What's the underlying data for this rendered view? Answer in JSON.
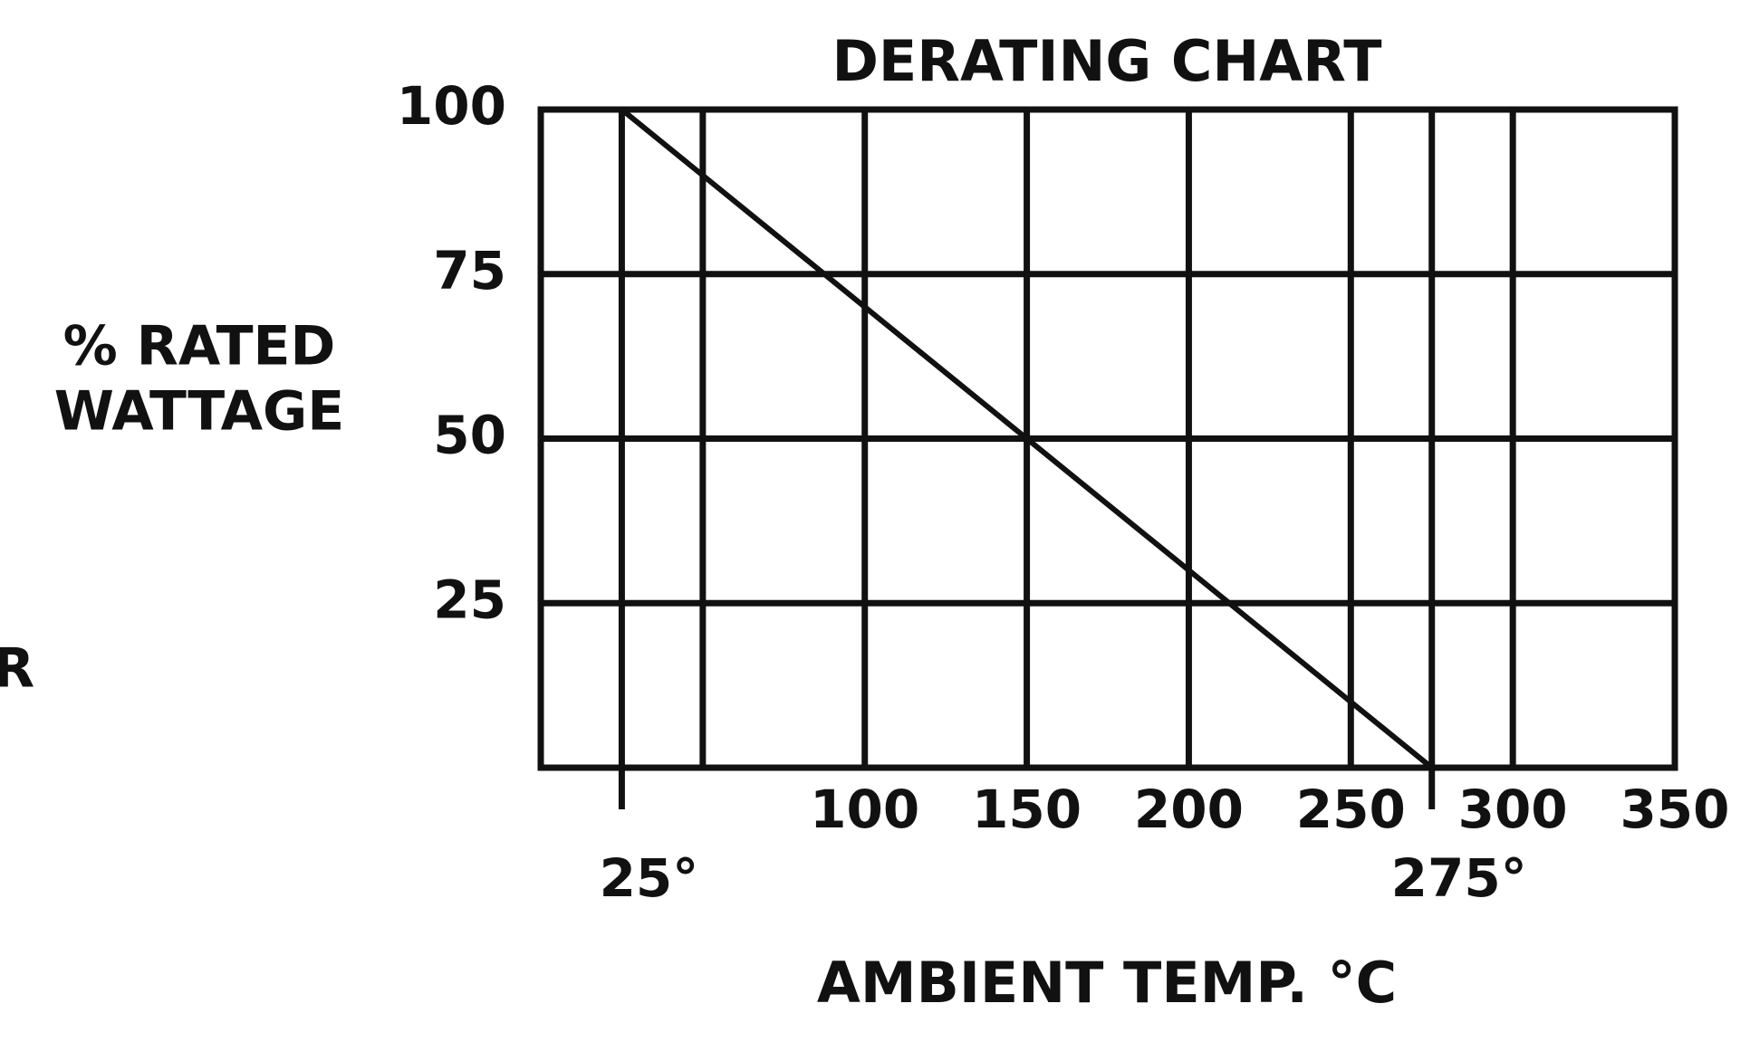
{
  "chart_data": {
    "type": "line",
    "title": "DERATING CHART",
    "xlabel": "AMBIENT TEMP. °C",
    "ylabel": [
      "% RATED",
      "WATTAGE"
    ],
    "annotations": [
      "R"
    ],
    "x": [
      25,
      275
    ],
    "series": [
      {
        "name": null,
        "color": "#111111",
        "values": [
          100,
          0
        ]
      }
    ],
    "xlim": [
      0,
      350
    ],
    "ylim": [
      0,
      100
    ],
    "xticks": [
      {
        "value": 25,
        "label": "25°"
      },
      {
        "value": 50,
        "label": null
      },
      100,
      150,
      200,
      250,
      {
        "value": 275,
        "label": "275°"
      },
      300,
      350
    ],
    "yticks": [
      25,
      50,
      75,
      100
    ],
    "grid": true
  }
}
